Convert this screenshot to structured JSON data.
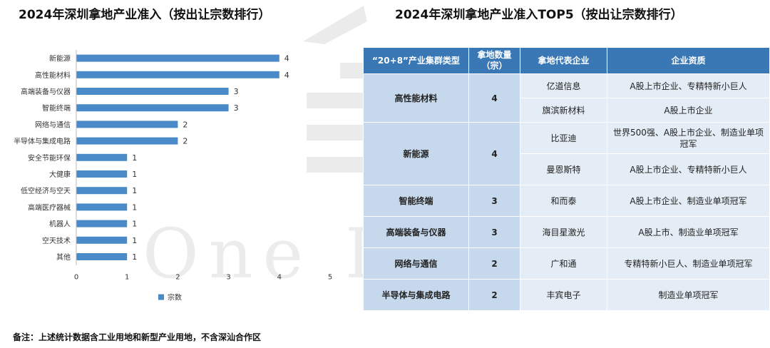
{
  "left_title": "2024年深圳拿地产业准入（按出让宗数排行）",
  "right_title": "2024年深圳拿地产业准入TOP5（按出让宗数排行）",
  "watermark": "One Industry",
  "footnote": "备注：上述统计数据含工业用地和新型产业用地，不含深汕合作区",
  "chart_data": {
    "type": "bar",
    "orientation": "horizontal",
    "categories": [
      "新能源",
      "高性能材料",
      "高端装备与仪器",
      "智能终端",
      "网络与通信",
      "半导体与集成电路",
      "安全节能环保",
      "大健康",
      "低空经济与空天",
      "高端医疗器械",
      "机器人",
      "空天技术",
      "其他"
    ],
    "series": [
      {
        "name": "宗数",
        "values": [
          4,
          4,
          3,
          3,
          2,
          2,
          1,
          1,
          1,
          1,
          1,
          1,
          1
        ]
      }
    ],
    "data_labels": [
      "4",
      "4",
      "3",
      "3",
      "2",
      "2",
      "1",
      "1",
      "1",
      "1",
      "1",
      "1",
      "1"
    ],
    "xticks": [
      "0",
      "1",
      "2",
      "3",
      "4",
      "5"
    ],
    "xlim": [
      0,
      5
    ],
    "legend": "bottom",
    "grid": false,
    "bar_color": "#4a8ac9"
  },
  "table": {
    "headers": [
      "“20+8”产业集群类型",
      "拿地数量（宗）",
      "拿地代表企业",
      "企业资质"
    ],
    "groups": [
      {
        "type": "高性能材料",
        "count": "4",
        "rows": [
          {
            "company": "亿道信息",
            "qualification": "A股上市企业、专精特新小巨人"
          },
          {
            "company": "旗滨新材料",
            "qualification": "A股上市企业"
          }
        ]
      },
      {
        "type": "新能源",
        "count": "4",
        "rows": [
          {
            "company": "比亚迪",
            "qualification": "世界500强、A股上市企业、制造业单项冠军"
          },
          {
            "company": "曼恩斯特",
            "qualification": "A股上市企业、专精特新小巨人"
          }
        ]
      },
      {
        "type": "智能终端",
        "count": "3",
        "rows": [
          {
            "company": "和而泰",
            "qualification": "A股上市企业、制造业单项冠军"
          }
        ]
      },
      {
        "type": "高端装备与仪器",
        "count": "3",
        "rows": [
          {
            "company": "海目星激光",
            "qualification": "A股上市、制造业单项冠军"
          }
        ]
      },
      {
        "type": "网络与通信",
        "count": "2",
        "rows": [
          {
            "company": "广和通",
            "qualification": "专精特新小巨人、制造业单项冠军"
          }
        ]
      },
      {
        "type": "半导体与集成电路",
        "count": "2",
        "rows": [
          {
            "company": "丰宾电子",
            "qualification": "制造业单项冠军"
          }
        ]
      }
    ]
  }
}
